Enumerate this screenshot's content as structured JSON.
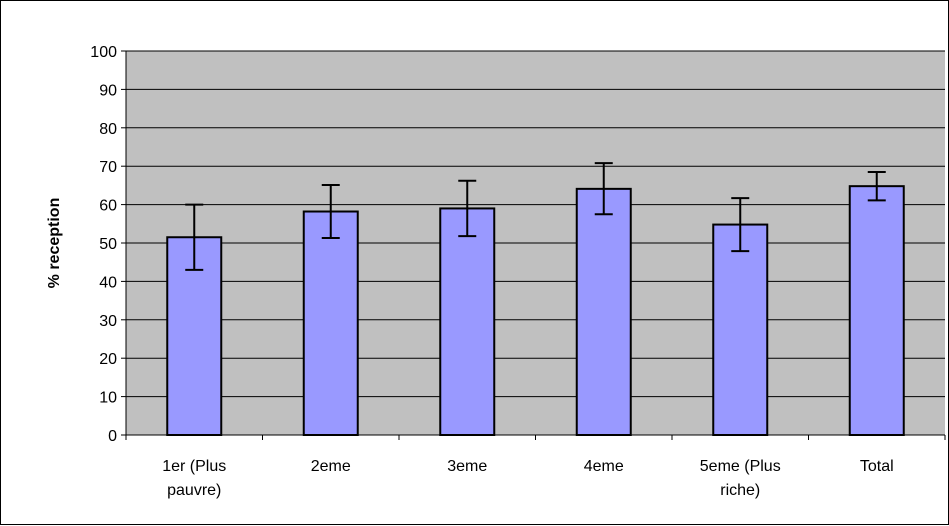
{
  "chart_data": {
    "type": "bar",
    "title": "",
    "xlabel": "",
    "ylabel": "% reception",
    "ylim": [
      0,
      100
    ],
    "yticks": [
      0,
      10,
      20,
      30,
      40,
      50,
      60,
      70,
      80,
      90,
      100
    ],
    "grid": true,
    "categories": [
      [
        "1er (Plus",
        "pauvre)"
      ],
      [
        "2eme"
      ],
      [
        "3eme"
      ],
      [
        "4eme"
      ],
      [
        "5eme (Plus",
        "riche)"
      ],
      [
        "Total"
      ]
    ],
    "series": [
      {
        "values": [
          51.5,
          58.2,
          59.0,
          64.1,
          54.8,
          64.8
        ],
        "error_low": [
          43.0,
          51.3,
          51.8,
          57.5,
          47.9,
          61.1
        ],
        "error_high": [
          60.0,
          65.1,
          66.2,
          70.8,
          61.7,
          68.5
        ]
      }
    ],
    "colors": {
      "plot_background": "#c0c0c0",
      "bar_fill": "#9999ff",
      "bar_stroke": "#000000",
      "gridline": "#000000"
    }
  }
}
